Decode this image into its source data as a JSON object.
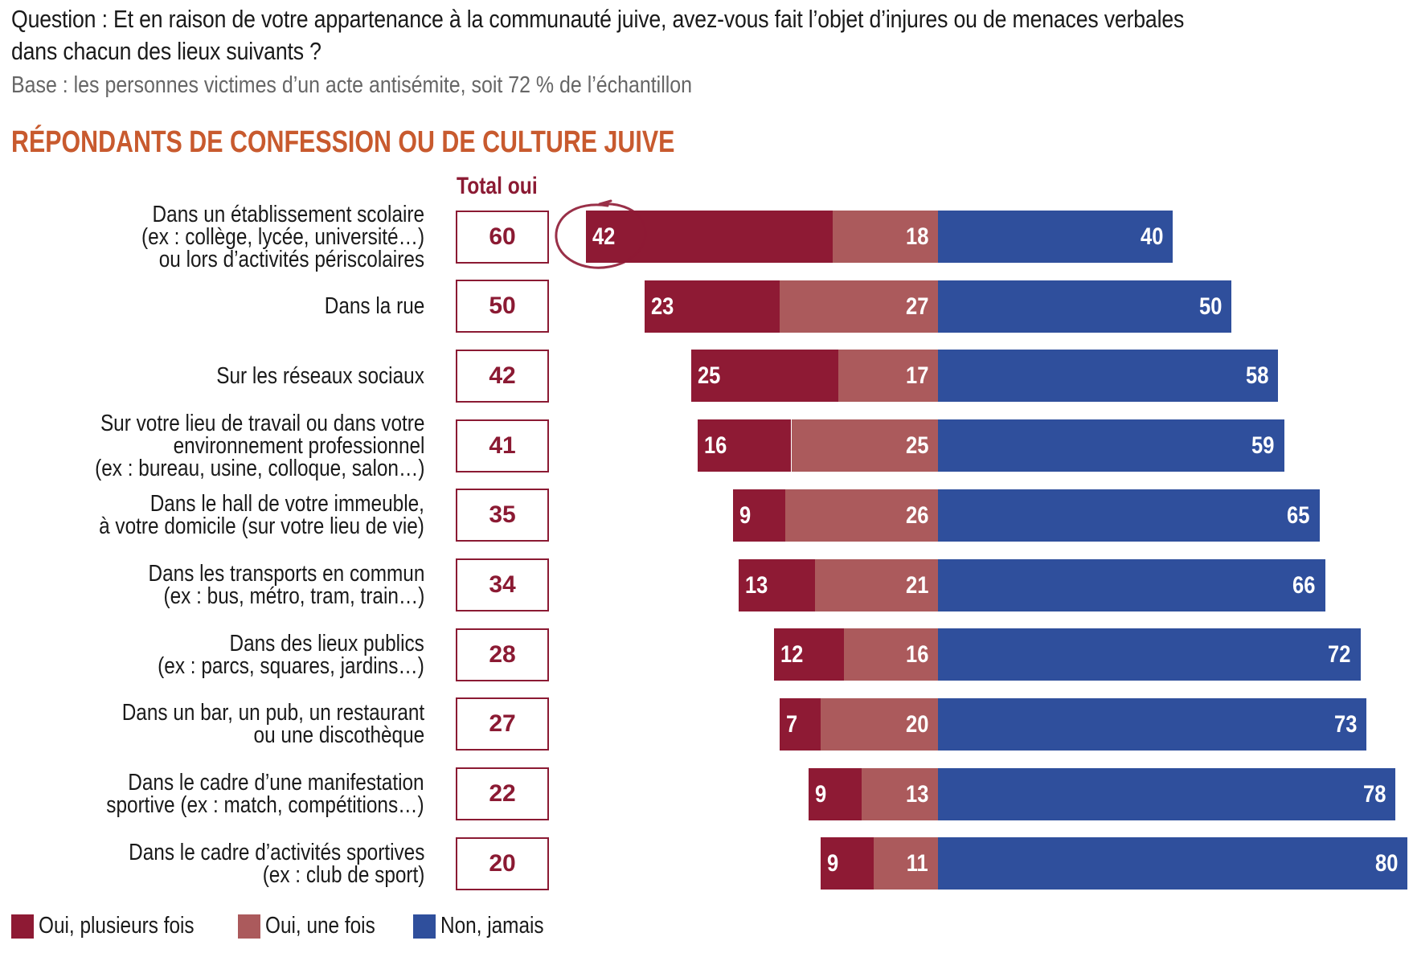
{
  "header": {
    "question": "Question : Et en raison de votre appartenance à la communauté juive, avez-vous fait l’objet d’injures ou de menaces verbales dans chacun des lieux suivants ?",
    "base": "Base : les personnes victimes d’un acte antisémite, soit 72 % de l’échantillon",
    "section_title": "RÉPONDANTS DE CONFESSION OU DE CULTURE JUIVE",
    "total_header": "Total oui"
  },
  "colors": {
    "oui_plusieurs": "#8e1a34",
    "oui_une": "#ab5a5c",
    "non_jamais": "#2f4f9c",
    "total_text": "#8b1a33",
    "section_title": "#c85a2e"
  },
  "legend": [
    {
      "label": "Oui, plusieurs fois",
      "color": "#8e1a34"
    },
    {
      "label": "Oui, une fois",
      "color": "#ab5a5c"
    },
    {
      "label": "Non, jamais",
      "color": "#2f4f9c"
    }
  ],
  "chart_data": {
    "type": "bar",
    "orientation": "horizontal-diverging-stacked",
    "title": "RÉPONDANTS DE CONFESSION OU DE CULTURE JUIVE",
    "xlabel": "",
    "ylabel": "",
    "unit": "%",
    "grid": false,
    "legend_position": "bottom-left",
    "highlight": {
      "category_index": 0,
      "series": "Oui, plusieurs fois",
      "annotation": "circled"
    },
    "categories": [
      [
        "Dans un établissement scolaire",
        "(ex : collège, lycée, université…)",
        "ou lors d’activités périscolaires"
      ],
      [
        "Dans la rue"
      ],
      [
        "Sur les réseaux sociaux"
      ],
      [
        "Sur votre lieu de travail ou dans votre",
        "environnement professionnel",
        "(ex : bureau, usine, colloque, salon…)"
      ],
      [
        "Dans le hall de votre immeuble,",
        "à votre domicile (sur votre lieu de vie)"
      ],
      [
        "Dans les transports en commun",
        "(ex : bus, métro, tram, train…)"
      ],
      [
        "Dans des lieux publics",
        "(ex : parcs, squares, jardins…)"
      ],
      [
        "Dans un bar, un pub, un restaurant",
        "ou une discothèque"
      ],
      [
        "Dans le cadre d’une manifestation",
        "sportive (ex : match, compétitions…)"
      ],
      [
        "Dans le cadre d’activités sportives",
        "(ex : club de sport)"
      ]
    ],
    "total_oui": [
      60,
      50,
      42,
      41,
      35,
      34,
      28,
      27,
      22,
      20
    ],
    "series": [
      {
        "name": "Oui, plusieurs fois",
        "color": "#8e1a34",
        "values": [
          42,
          23,
          25,
          16,
          9,
          13,
          12,
          7,
          9,
          9
        ]
      },
      {
        "name": "Oui, une fois",
        "color": "#ab5a5c",
        "values": [
          18,
          27,
          17,
          25,
          26,
          21,
          16,
          20,
          13,
          11
        ]
      },
      {
        "name": "Non, jamais",
        "color": "#2f4f9c",
        "values": [
          40,
          50,
          58,
          59,
          65,
          66,
          72,
          73,
          78,
          80
        ]
      }
    ]
  }
}
